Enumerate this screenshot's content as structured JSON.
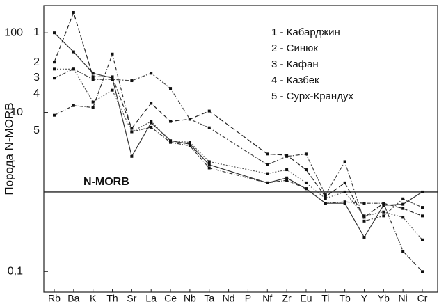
{
  "chart_data": {
    "type": "line",
    "ylabel": "Порода N-MORB",
    "log_scale": true,
    "ylim": [
      0.055,
      220
    ],
    "yticks": [
      {
        "value": 0.1,
        "label": "0,1"
      },
      10,
      100
    ],
    "reference_line": {
      "value": 1,
      "label": "N-MORB"
    },
    "categories": [
      "Rb",
      "Ba",
      "K",
      "Th",
      "Sr",
      "La",
      "Ce",
      "Nb",
      "Ta",
      "Nd",
      "P",
      "Nf",
      "Zr",
      "Eu",
      "Ti",
      "Tb",
      "Y",
      "Yb",
      "Ni",
      "Cr"
    ],
    "start_labels": [
      "1",
      "2",
      "3",
      "4",
      "5"
    ],
    "series": [
      {
        "name": "1 - Кабарджин",
        "color": "#333333",
        "dash": "none",
        "values": [
          100,
          57.6,
          31,
          27,
          2.8,
          7.4,
          4.4,
          4.0,
          2.2,
          null,
          null,
          1.3,
          1.5,
          1.1,
          0.72,
          0.72,
          0.27,
          0.68,
          0.7,
          1.0
        ]
      },
      {
        "name": "2 - Синюк",
        "color": "#222222",
        "dash": "7,3",
        "values": [
          42.9,
          180,
          28,
          28,
          6.3,
          13,
          7.7,
          8.2,
          10.4,
          null,
          null,
          3,
          2.9,
          1.9,
          0.87,
          1.3,
          0.48,
          0.72,
          0.62,
          0.5
        ]
      },
      {
        "name": "3 - Кафан",
        "color": "#444444",
        "dash": "6,2,2,2",
        "values": [
          27,
          35,
          26,
          26,
          25,
          31,
          20,
          8.2,
          6.4,
          null,
          null,
          2.2,
          2.8,
          3,
          0.92,
          2.4,
          0.43,
          0.5,
          0.82,
          0.64
        ]
      },
      {
        "name": "4 - Казбек",
        "color": "#555555",
        "dash": "2,2",
        "values": [
          35,
          35,
          13.5,
          19,
          5.7,
          7.7,
          4.4,
          4.2,
          2.4,
          null,
          null,
          1.7,
          1.9,
          1.3,
          0.83,
          1.0,
          0.5,
          0.56,
          0.48,
          0.25
        ]
      },
      {
        "name": "5 - Сурх-Крандух",
        "color": "#333333",
        "dash": "5,2,1,2",
        "values": [
          9.2,
          12.2,
          11.5,
          54,
          5.7,
          6.5,
          4.2,
          3.8,
          2.0,
          null,
          null,
          1.3,
          1.4,
          1.1,
          0.72,
          0.75,
          0.72,
          0.72,
          0.18,
          0.1
        ]
      }
    ]
  }
}
